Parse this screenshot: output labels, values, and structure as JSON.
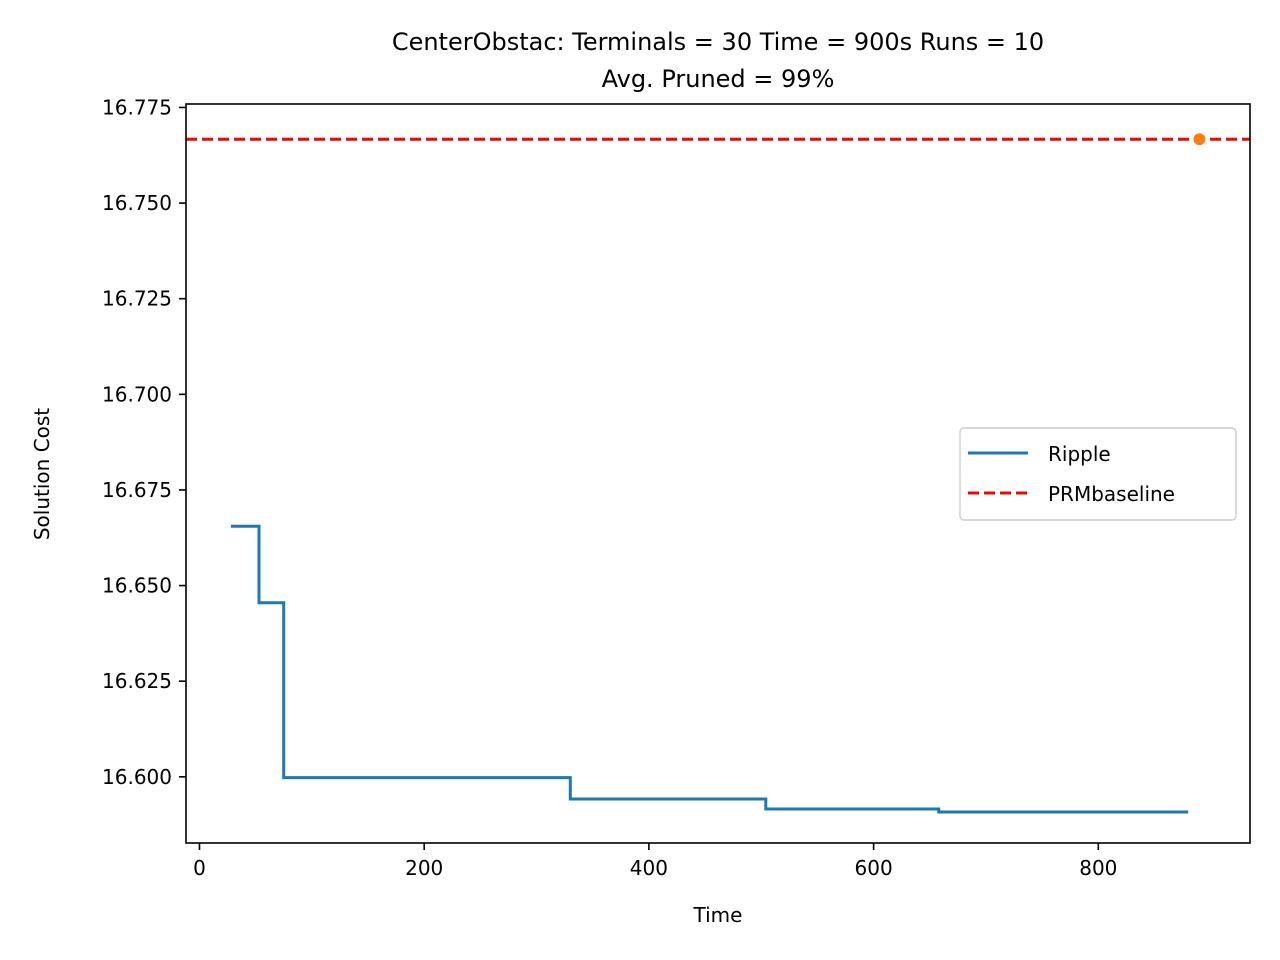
{
  "chart_data": {
    "type": "line",
    "title_line1": "CenterObstac:  Terminals = 30  Time = 900s  Runs = 10",
    "title_line2": "Avg. Pruned = 99%",
    "xlabel": "Time",
    "ylabel": "Solution Cost",
    "xlim": [
      -12,
      935
    ],
    "ylim": [
      16.5827,
      16.7759
    ],
    "x_ticks": [
      0,
      200,
      400,
      600,
      800
    ],
    "x_tick_labels": [
      "0",
      "200",
      "400",
      "600",
      "800"
    ],
    "y_ticks": [
      16.6,
      16.625,
      16.65,
      16.675,
      16.7,
      16.725,
      16.75,
      16.775
    ],
    "y_tick_labels": [
      "16.600",
      "16.625",
      "16.650",
      "16.675",
      "16.700",
      "16.725",
      "16.750",
      "16.775"
    ],
    "grid": false,
    "legend_position": "center-right",
    "series": [
      {
        "name": "Ripple",
        "style": "step",
        "color": "#1f77b4",
        "x": [
          28,
          53,
          53,
          75,
          75,
          330,
          330,
          504,
          504,
          658,
          658,
          880
        ],
        "y": [
          16.6655,
          16.6655,
          16.6455,
          16.6455,
          16.5998,
          16.5998,
          16.5942,
          16.5942,
          16.5916,
          16.5916,
          16.5908,
          16.5908
        ]
      },
      {
        "name": "PRMbaseline",
        "style": "hline-dashed",
        "color": "#ff0000",
        "y": 16.7667
      }
    ],
    "markers": [
      {
        "x": 890,
        "y": 16.7667,
        "color": "#ff7f0e"
      }
    ]
  }
}
